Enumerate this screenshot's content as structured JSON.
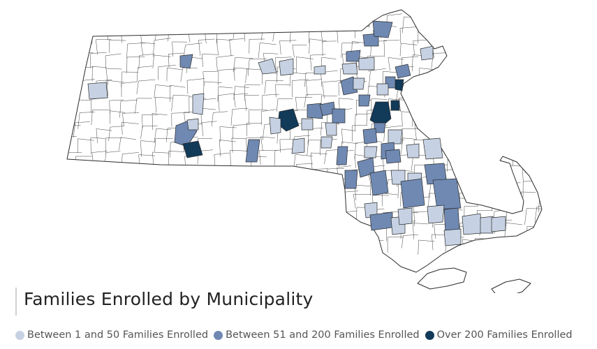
{
  "title": "Families Enrolled by Municipality",
  "legend": [
    {
      "label": "Between 1 and 50 Families Enrolled",
      "color": "#c6d2e3",
      "category": "low"
    },
    {
      "label": "Between 51 and 200 Families Enrolled",
      "color": "#6f89b3",
      "category": "mid"
    },
    {
      "label": "Over 200 Families Enrolled",
      "color": "#123a59",
      "category": "high"
    }
  ],
  "map": {
    "region": "Massachusetts",
    "unit": "municipality",
    "border_color": "#2b2b2b",
    "no_data_color": "#ffffff"
  }
}
